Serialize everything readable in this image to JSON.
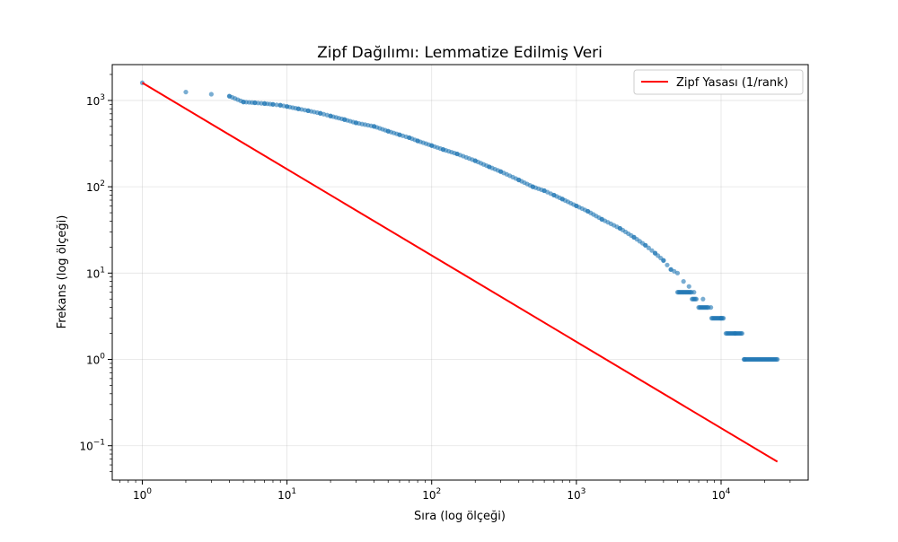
{
  "chart_data": {
    "type": "scatter",
    "title": "Zipf Dağılımı: Lemmatize Edilmiş Veri",
    "xlabel": "Sıra (log ölçeği)",
    "ylabel": "Frekans (log ölçeği)",
    "x_scale": "log",
    "y_scale": "log",
    "x_range": [
      0.62,
      40000
    ],
    "y_range": [
      0.04,
      2600
    ],
    "grid": true,
    "legend_position": "top-right",
    "x_ticks": [
      {
        "value": 1,
        "base": "10",
        "exp": "0"
      },
      {
        "value": 10,
        "base": "10",
        "exp": "1"
      },
      {
        "value": 100,
        "base": "10",
        "exp": "2"
      },
      {
        "value": 1000,
        "base": "10",
        "exp": "3"
      },
      {
        "value": 10000,
        "base": "10",
        "exp": "4"
      }
    ],
    "y_ticks": [
      {
        "value": 0.1,
        "base": "10",
        "exp": "−1"
      },
      {
        "value": 1,
        "base": "10",
        "exp": "0"
      },
      {
        "value": 10,
        "base": "10",
        "exp": "1"
      },
      {
        "value": 100,
        "base": "10",
        "exp": "2"
      },
      {
        "value": 1000,
        "base": "10",
        "exp": "3"
      }
    ],
    "series": [
      {
        "kind": "scatter",
        "color": "#1f77b4",
        "points": [
          [
            1,
            1600
          ],
          [
            2,
            1250
          ],
          [
            3,
            1180
          ],
          [
            4,
            1120
          ],
          [
            5,
            960
          ],
          [
            6,
            940
          ],
          [
            7,
            920
          ],
          [
            8,
            900
          ],
          [
            9,
            880
          ],
          [
            10,
            850
          ],
          [
            12,
            800
          ],
          [
            14,
            760
          ],
          [
            17,
            710
          ],
          [
            20,
            660
          ],
          [
            25,
            600
          ],
          [
            30,
            550
          ],
          [
            40,
            500
          ],
          [
            50,
            440
          ],
          [
            60,
            400
          ],
          [
            70,
            370
          ],
          [
            80,
            340
          ],
          [
            100,
            300
          ],
          [
            120,
            270
          ],
          [
            150,
            240
          ],
          [
            200,
            200
          ],
          [
            250,
            170
          ],
          [
            300,
            150
          ],
          [
            400,
            120
          ],
          [
            500,
            100
          ],
          [
            600,
            90
          ],
          [
            700,
            80
          ],
          [
            800,
            72
          ],
          [
            1000,
            60
          ],
          [
            1200,
            52
          ],
          [
            1500,
            42
          ],
          [
            2000,
            33
          ],
          [
            2500,
            26
          ],
          [
            3000,
            21
          ],
          [
            3500,
            17
          ],
          [
            4000,
            14
          ],
          [
            4500,
            11
          ],
          [
            5000,
            10
          ],
          [
            5500,
            8
          ],
          [
            6000,
            7
          ],
          [
            6500,
            6
          ],
          [
            7500,
            5
          ],
          [
            8500,
            4
          ],
          [
            10000,
            3
          ],
          [
            12500,
            2
          ],
          [
            14500,
            1
          ],
          [
            24500,
            1
          ]
        ],
        "steps": [
          {
            "value": 6,
            "x_start": 5000,
            "x_end": 6300
          },
          {
            "value": 5,
            "x_start": 6300,
            "x_end": 6800
          },
          {
            "value": 4,
            "x_start": 7000,
            "x_end": 8300
          },
          {
            "value": 3,
            "x_start": 8600,
            "x_end": 10500
          },
          {
            "value": 2,
            "x_start": 10800,
            "x_end": 14200
          },
          {
            "value": 1,
            "x_start": 14400,
            "x_end": 24500
          }
        ]
      },
      {
        "kind": "line",
        "name": "Zipf Yasası (1/rank)",
        "color": "#ff0000",
        "points": [
          [
            1,
            1600
          ],
          [
            24500,
            0.0653
          ]
        ]
      }
    ]
  }
}
